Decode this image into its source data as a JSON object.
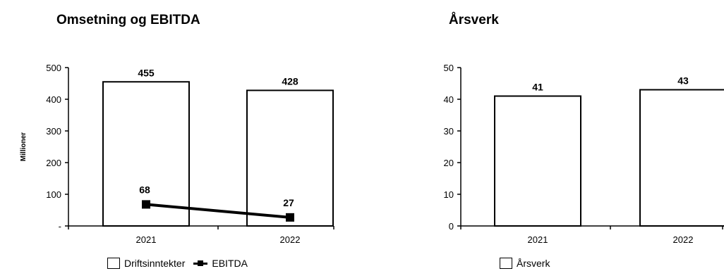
{
  "chart_data": [
    {
      "type": "bar",
      "title": "Omsetning og EBITDA",
      "ylabel": "Millioner",
      "categories": [
        "2021",
        "2022"
      ],
      "ylim": [
        0,
        500
      ],
      "yticks": [
        "-",
        "100",
        "200",
        "300",
        "400",
        "500"
      ],
      "series": [
        {
          "name": "Driftsinntekter",
          "type": "bar",
          "values": [
            455,
            428
          ],
          "labels": [
            "455",
            "428"
          ]
        },
        {
          "name": "EBITDA",
          "type": "line",
          "values": [
            68,
            27
          ],
          "labels": [
            "68",
            "27"
          ]
        }
      ],
      "grid": false,
      "legend": "bottom"
    },
    {
      "type": "bar",
      "title": "Årsverk",
      "ylabel": "",
      "categories": [
        "2021",
        "2022"
      ],
      "ylim": [
        0,
        50
      ],
      "yticks": [
        "0",
        "10",
        "20",
        "30",
        "40",
        "50"
      ],
      "series": [
        {
          "name": "Årsverk",
          "type": "bar",
          "values": [
            41,
            43
          ],
          "labels": [
            "41",
            "43"
          ]
        }
      ],
      "grid": false,
      "legend": "bottom"
    }
  ]
}
